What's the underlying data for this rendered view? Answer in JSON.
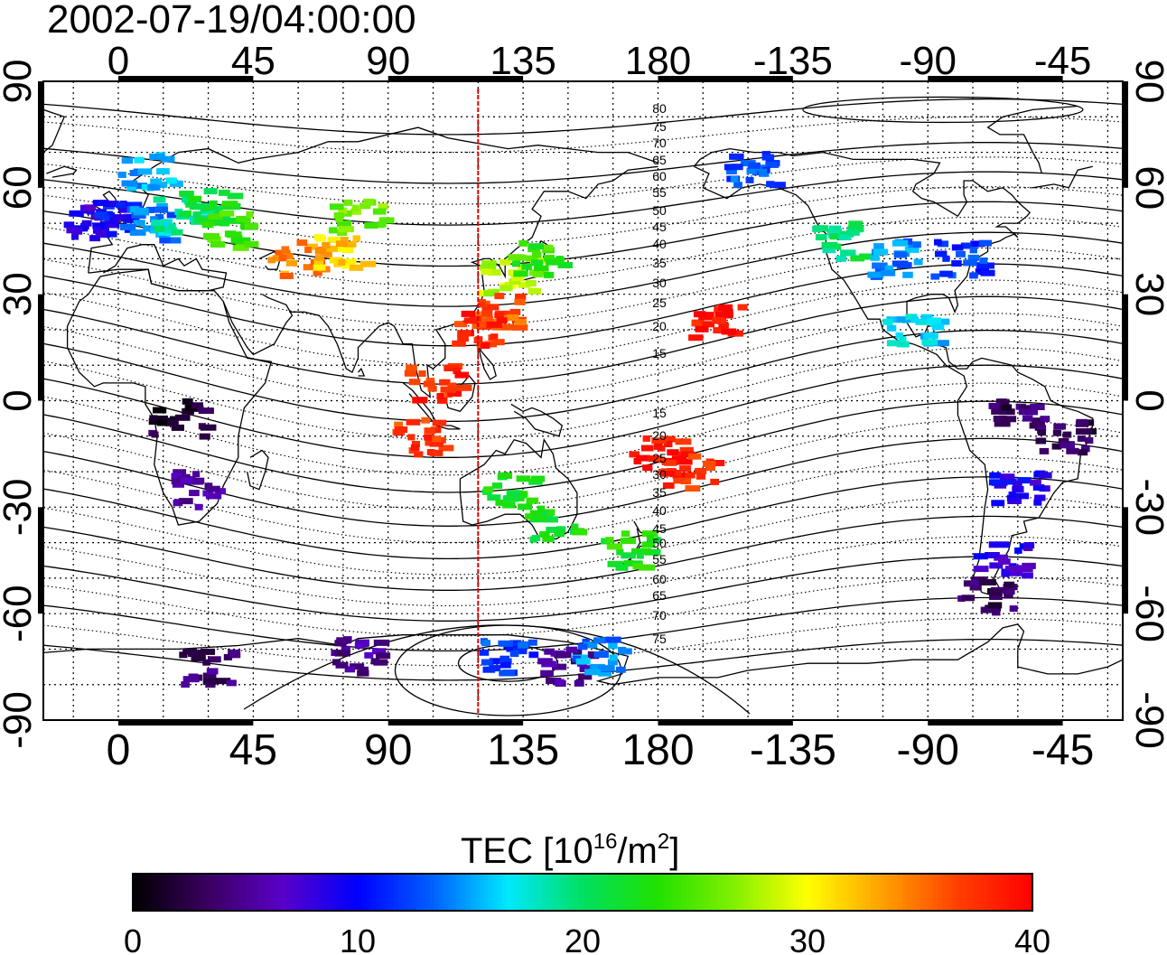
{
  "title": "2002-07-19/04:00:00",
  "map": {
    "top_lon_labels": [
      "0",
      "45",
      "90",
      "135",
      "180",
      "-135",
      "-90",
      "-45"
    ],
    "bottom_lon_labels": [
      "0",
      "45",
      "90",
      "135",
      "180",
      "-135",
      "-90",
      "-45"
    ],
    "left_lat_labels": [
      "90",
      "60",
      "30",
      "0",
      "-30",
      "-60",
      "-90"
    ],
    "right_lat_labels": [
      "90",
      "60",
      "30",
      "0",
      "-30",
      "-60",
      "-90"
    ],
    "contour_labels_north": [
      "80",
      "75",
      "70",
      "65",
      "60",
      "55",
      "50",
      "45",
      "40",
      "35",
      "30",
      "25",
      "20",
      "15"
    ],
    "contour_labels_south": [
      "15",
      "20",
      "25",
      "30",
      "35",
      "40",
      "45",
      "50",
      "55",
      "60",
      "65",
      "70",
      "75"
    ],
    "meridian_marker_lon": 120,
    "meridian_marker_color": "#e00000"
  },
  "colorbar": {
    "title_main": "TEC  [10",
    "title_exp": "16",
    "title_unit": "/m",
    "title_exp2": "2",
    "title_end": "]",
    "ticks": [
      "0",
      "10",
      "20",
      "30",
      "40"
    ],
    "range": [
      0,
      40
    ],
    "colors": [
      "#000000",
      "#3a0060",
      "#5a00c8",
      "#0000ff",
      "#0060ff",
      "#00e8ff",
      "#00e060",
      "#20e000",
      "#80f000",
      "#ffff00",
      "#ffa000",
      "#ff4000",
      "#ff0000"
    ]
  },
  "chart_data": {
    "type": "heatmap",
    "title": "2002-07-19/04:00:00",
    "variable": "TEC  [10^16/m^2]",
    "colorscale_range": [
      0,
      40
    ],
    "lon_range": [
      -25,
      335
    ],
    "lat_range": [
      -90,
      90
    ],
    "points": [
      {
        "lon": -10,
        "lat": 50,
        "tec": 8
      },
      {
        "lon": 0,
        "lat": 52,
        "tec": 10
      },
      {
        "lon": 10,
        "lat": 50,
        "tec": 14
      },
      {
        "lon": 20,
        "lat": 52,
        "tec": 18
      },
      {
        "lon": 30,
        "lat": 55,
        "tec": 22
      },
      {
        "lon": 10,
        "lat": 65,
        "tec": 15
      },
      {
        "lon": 35,
        "lat": 48,
        "tec": 24
      },
      {
        "lon": 60,
        "lat": 40,
        "tec": 34
      },
      {
        "lon": 75,
        "lat": 42,
        "tec": 32
      },
      {
        "lon": 80,
        "lat": 52,
        "tec": 26
      },
      {
        "lon": 130,
        "lat": 35,
        "tec": 28
      },
      {
        "lon": 140,
        "lat": 40,
        "tec": 24
      },
      {
        "lon": 125,
        "lat": 25,
        "tec": 36
      },
      {
        "lon": 120,
        "lat": 20,
        "tec": 38
      },
      {
        "lon": 105,
        "lat": 5,
        "tec": 38
      },
      {
        "lon": 100,
        "lat": -10,
        "tec": 37
      },
      {
        "lon": 130,
        "lat": -25,
        "tec": 22
      },
      {
        "lon": 145,
        "lat": -35,
        "tec": 22
      },
      {
        "lon": 170,
        "lat": -42,
        "tec": 23
      },
      {
        "lon": 180,
        "lat": -15,
        "tec": 39
      },
      {
        "lon": 200,
        "lat": 22,
        "tec": 39
      },
      {
        "lon": 190,
        "lat": -20,
        "tec": 38
      },
      {
        "lon": -150,
        "lat": 65,
        "tec": 13
      },
      {
        "lon": -120,
        "lat": 45,
        "tec": 20
      },
      {
        "lon": -100,
        "lat": 40,
        "tec": 14
      },
      {
        "lon": -80,
        "lat": 40,
        "tec": 12
      },
      {
        "lon": -95,
        "lat": 20,
        "tec": 16
      },
      {
        "lon": -60,
        "lat": -5,
        "tec": 3
      },
      {
        "lon": -45,
        "lat": -10,
        "tec": 3
      },
      {
        "lon": -60,
        "lat": -25,
        "tec": 9
      },
      {
        "lon": -65,
        "lat": -45,
        "tec": 8
      },
      {
        "lon": -70,
        "lat": -55,
        "tec": 3
      },
      {
        "lon": 20,
        "lat": -5,
        "tec": 2
      },
      {
        "lon": 25,
        "lat": -25,
        "tec": 5
      },
      {
        "lon": 30,
        "lat": -75,
        "tec": 4
      },
      {
        "lon": 80,
        "lat": -72,
        "tec": 5
      },
      {
        "lon": 130,
        "lat": -72,
        "tec": 12
      },
      {
        "lon": 150,
        "lat": -75,
        "tec": 5
      },
      {
        "lon": 160,
        "lat": -72,
        "tec": 14
      }
    ]
  }
}
